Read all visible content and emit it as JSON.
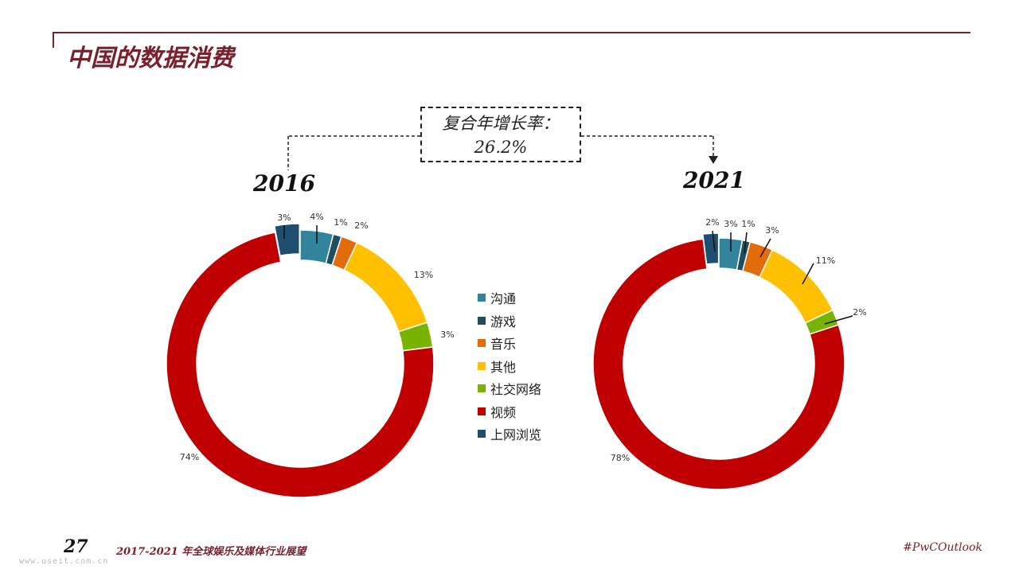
{
  "header": {
    "title": "中国的数据消费"
  },
  "cagr": {
    "label": "复合年增长率：",
    "value": "26.2%"
  },
  "legend": [
    {
      "label": "沟通",
      "color": "#31849b"
    },
    {
      "label": "游戏",
      "color": "#1f4e5f"
    },
    {
      "label": "音乐",
      "color": "#e36c0a"
    },
    {
      "label": "其他",
      "color": "#ffc000"
    },
    {
      "label": "社交网络",
      "color": "#77b300"
    },
    {
      "label": "视频",
      "color": "#c00000"
    },
    {
      "label": "上网浏览",
      "color": "#1f4e6f"
    }
  ],
  "chart_data": [
    {
      "type": "pie",
      "title": "2016",
      "slices": [
        {
          "name": "沟通",
          "value": 4,
          "label": "4%"
        },
        {
          "name": "游戏",
          "value": 1,
          "label": "1%"
        },
        {
          "name": "音乐",
          "value": 2,
          "label": "2%"
        },
        {
          "name": "其他",
          "value": 13,
          "label": "13%"
        },
        {
          "name": "社交网络",
          "value": 3,
          "label": "3%"
        },
        {
          "name": "视频",
          "value": 74,
          "label": "74%"
        },
        {
          "name": "上网浏览",
          "value": 3,
          "label": "3%"
        }
      ]
    },
    {
      "type": "pie",
      "title": "2021",
      "slices": [
        {
          "name": "沟通",
          "value": 3,
          "label": "3%"
        },
        {
          "name": "游戏",
          "value": 1,
          "label": "1%"
        },
        {
          "name": "音乐",
          "value": 3,
          "label": "3%"
        },
        {
          "name": "其他",
          "value": 11,
          "label": "11%"
        },
        {
          "name": "社交网络",
          "value": 2,
          "label": "2%"
        },
        {
          "name": "视频",
          "value": 78,
          "label": "78%"
        },
        {
          "name": "上网浏览",
          "value": 2,
          "label": "2%"
        }
      ]
    }
  ],
  "footer": {
    "page": "27",
    "title": "2017-2021 年全球娱乐及媒体行业展望",
    "tag": "#PwCOutlook",
    "watermark": "www.useit.com.cn"
  }
}
